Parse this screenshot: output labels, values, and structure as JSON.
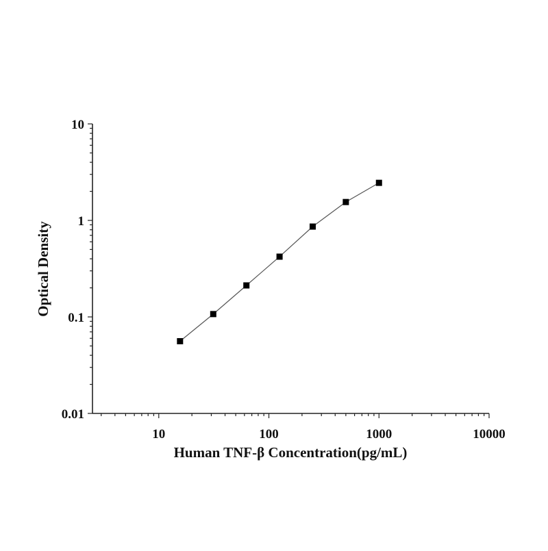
{
  "chart_data": {
    "type": "line",
    "title": "",
    "xlabel": "Human TNF-β Concentration(pg/mL)",
    "ylabel": "Optical Density",
    "xscale": "log",
    "yscale": "log",
    "xlim": [
      2.5,
      10000
    ],
    "ylim": [
      0.01,
      10
    ],
    "xticks": [
      10,
      100,
      1000,
      10000
    ],
    "xtick_labels": [
      "10",
      "100",
      "1000",
      "10000"
    ],
    "yticks": [
      0.01,
      0.1,
      1,
      10
    ],
    "ytick_labels": [
      "0.01",
      "0.1",
      "1",
      "10"
    ],
    "grid": false,
    "marker": "square",
    "series": [
      {
        "x": [
          15.6,
          31.25,
          62.5,
          125,
          250,
          500,
          1000
        ],
        "y": [
          0.056,
          0.107,
          0.212,
          0.421,
          0.863,
          1.55,
          2.45
        ],
        "color": "#000000",
        "line_color": "#555555"
      }
    ]
  }
}
